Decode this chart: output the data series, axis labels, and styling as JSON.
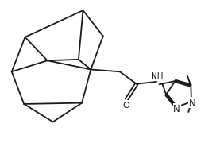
{
  "bg_color": "#ffffff",
  "line_color": "#1a1a1a",
  "line_width": 1.3,
  "font_size": 7.5,
  "figsize": [
    2.82,
    2.05
  ],
  "dpi": 100,
  "xlim": [
    0.0,
    10.0
  ],
  "ylim": [
    0.0,
    7.2
  ]
}
